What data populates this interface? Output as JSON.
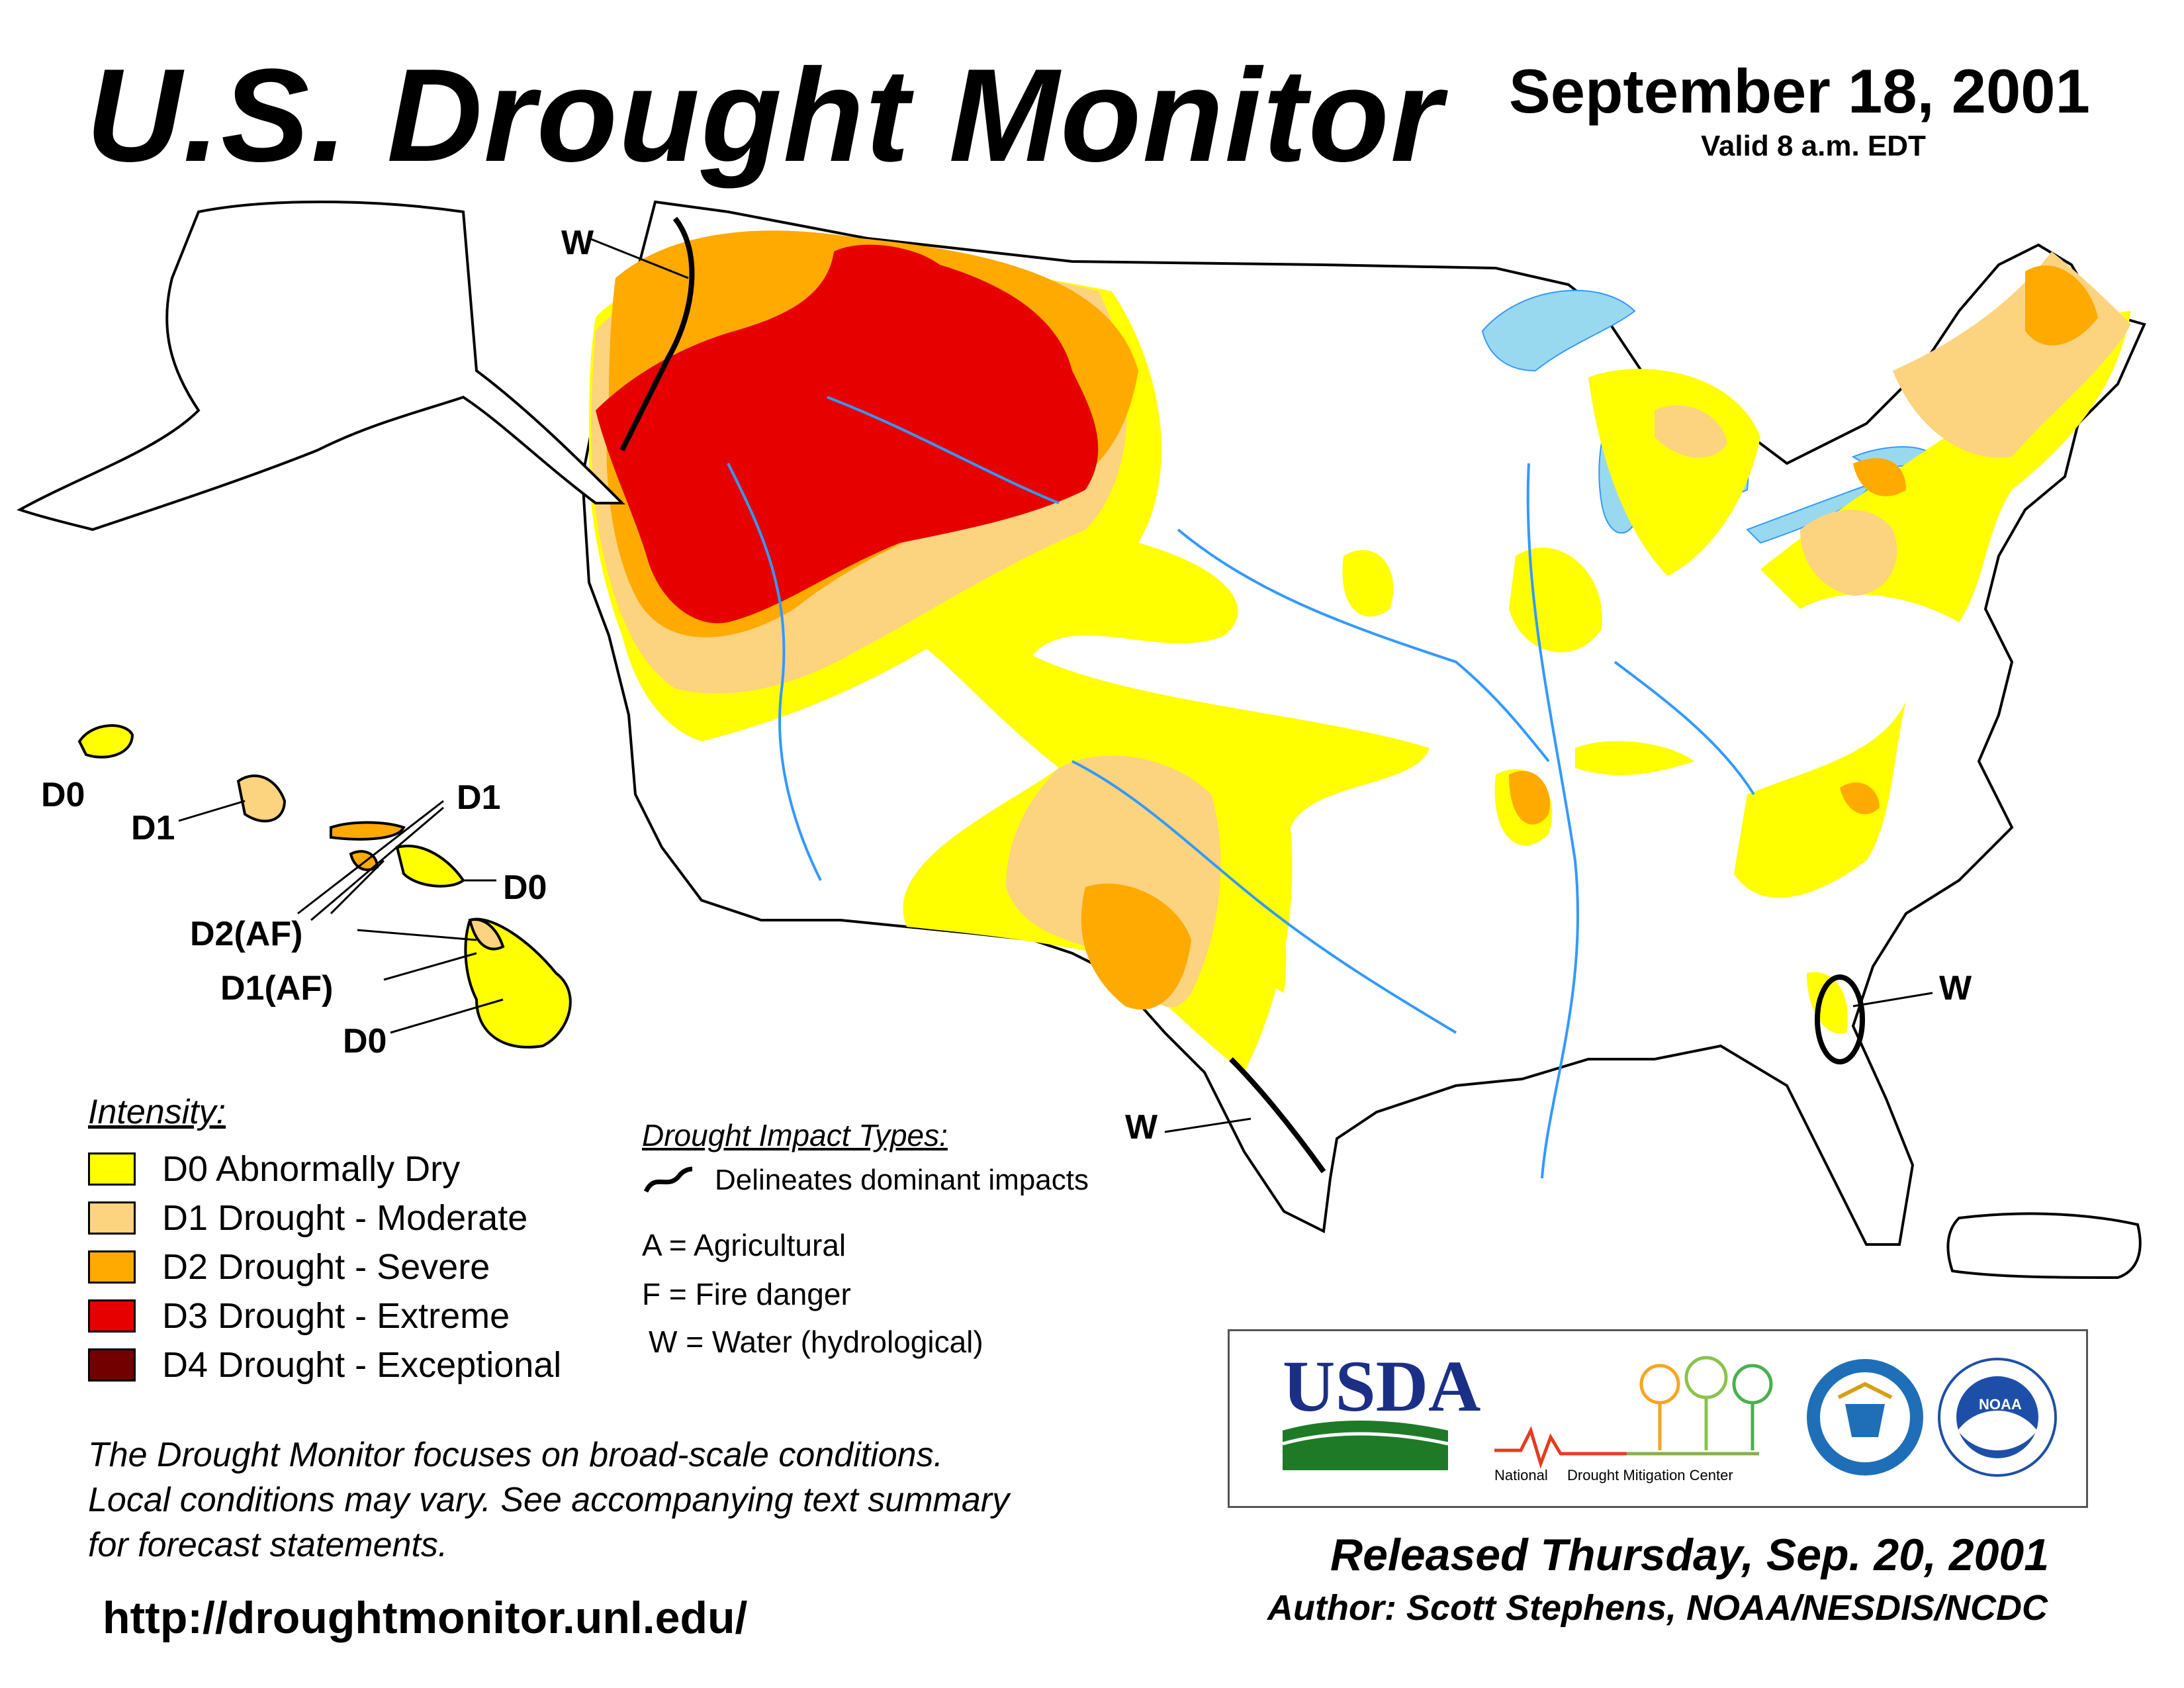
{
  "header": {
    "title": "U.S. Drought Monitor",
    "date": "September 18, 2001",
    "valid": "Valid 8 a.m. EDT"
  },
  "map_labels": {
    "w_northwest": "W",
    "w_florida": "W",
    "w_texas": "W",
    "hawaii_kauai": "D0",
    "hawaii_oahu": "D1",
    "hawaii_molokai": "D1",
    "hawaii_maui": "D0",
    "hawaii_lanai": "D2(AF)",
    "hawaii_big_island_nw": "D1(AF)",
    "hawaii_big_island": "D0"
  },
  "legend": {
    "title": "Intensity:",
    "items": [
      {
        "label": "D0 Abnormally Dry",
        "color": "#ffff00"
      },
      {
        "label": "D1 Drought - Moderate",
        "color": "#fcd37f"
      },
      {
        "label": "D2 Drought - Severe",
        "color": "#ffaa00"
      },
      {
        "label": "D3 Drought - Extreme",
        "color": "#e60000"
      },
      {
        "label": "D4 Drought - Exceptional",
        "color": "#730000"
      }
    ]
  },
  "impacts": {
    "title": "Drought Impact Types:",
    "line_label": "Delineates dominant impacts",
    "codes": [
      "A = Agricultural",
      "F = Fire danger",
      "W = Water (hydrological)"
    ]
  },
  "note": {
    "lines": [
      "The Drought Monitor focuses on broad-scale conditions.",
      "Local conditions may vary. See accompanying text summary",
      "for forecast statements."
    ]
  },
  "url": "http://droughtmonitor.unl.edu/",
  "logos": {
    "usda": "USDA",
    "ndmc_a": "National",
    "ndmc_b": "Drought Mitigation Center",
    "noaa": "NOAA"
  },
  "footer": {
    "released": "Released Thursday, Sep. 20, 2001",
    "author": "Author: Scott Stephens, NOAA/NESDIS/NCDC"
  },
  "colors": {
    "d0": "#ffff00",
    "d1": "#fcd37f",
    "d2": "#ffaa00",
    "d3": "#e60000",
    "d4": "#730000",
    "water": "#99d9f0",
    "river": "#3399ff"
  }
}
